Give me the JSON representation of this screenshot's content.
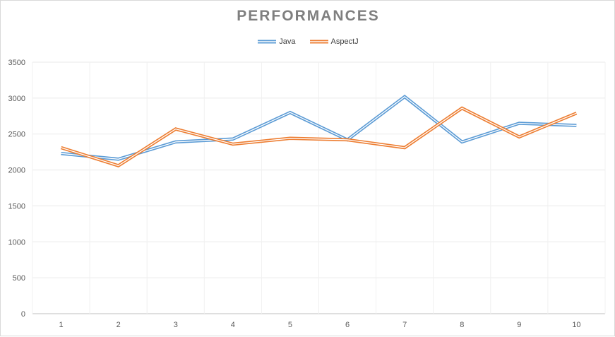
{
  "chart_data": {
    "type": "line",
    "title": "PERFORMANCES",
    "xlabel": "",
    "ylabel": "",
    "categories": [
      "1",
      "2",
      "3",
      "4",
      "5",
      "6",
      "7",
      "8",
      "9",
      "10"
    ],
    "ylim": [
      0,
      3500
    ],
    "yticks": [
      0,
      500,
      1000,
      1500,
      2000,
      2500,
      3000,
      3500
    ],
    "grid": true,
    "legend_position": "top",
    "series": [
      {
        "name": "Java",
        "color": "#5b9bd5",
        "values": [
          2230,
          2150,
          2390,
          2430,
          2800,
          2420,
          3020,
          2390,
          2650,
          2620
        ]
      },
      {
        "name": "AspectJ",
        "color": "#ed7d31",
        "values": [
          2310,
          2060,
          2570,
          2360,
          2440,
          2420,
          2310,
          2860,
          2460,
          2790
        ]
      }
    ]
  }
}
